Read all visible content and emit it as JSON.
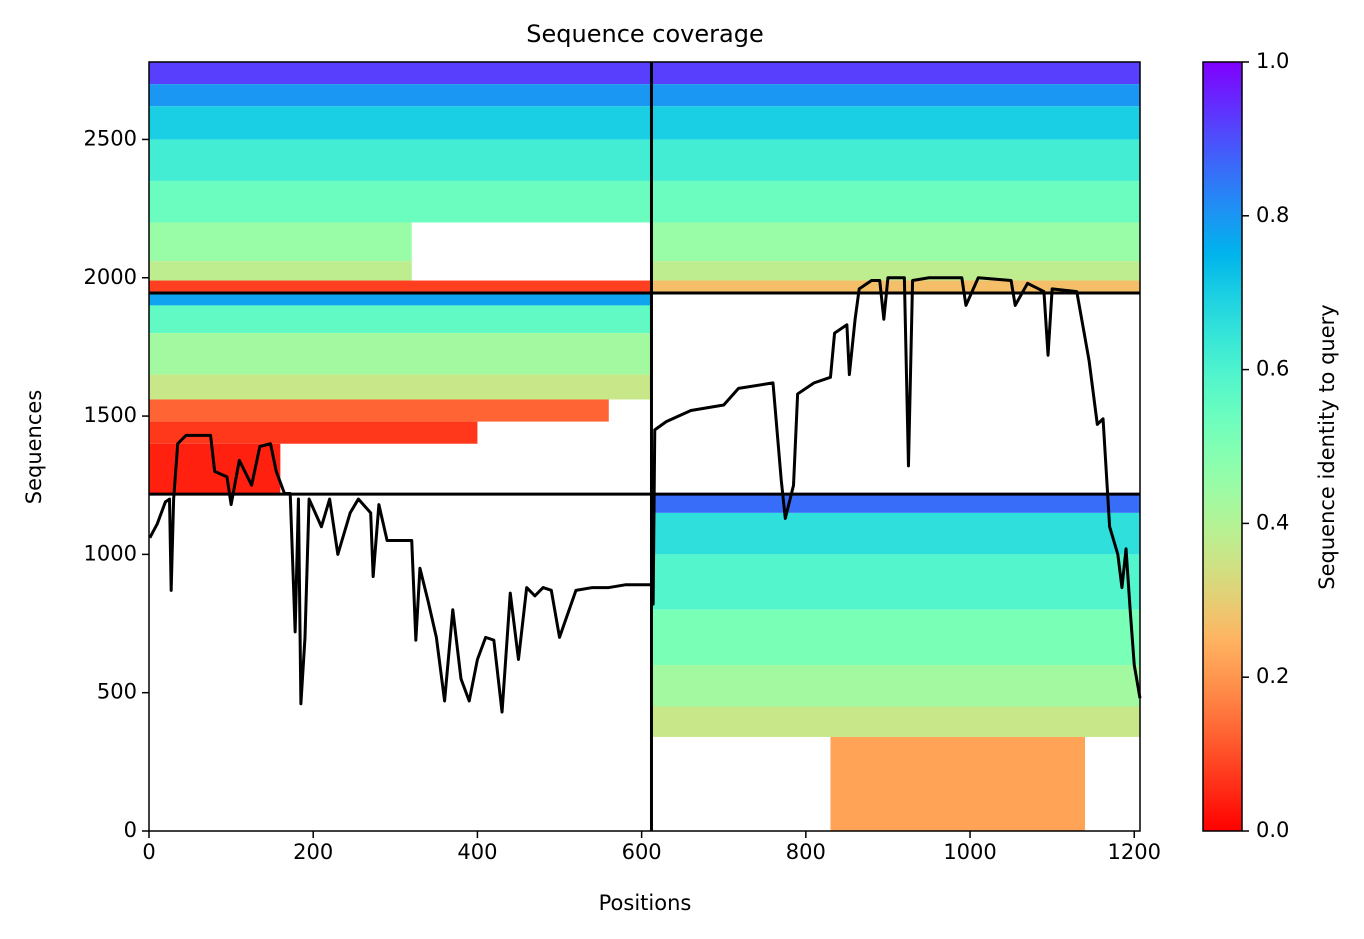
{
  "chart_data": {
    "type": "coverage",
    "title": "Sequence coverage",
    "x_label": "Positions",
    "y_label": "Sequences",
    "colorbar_label": "Sequence identity to query",
    "colormap": "rainbow_r",
    "xlim": [
      0,
      1207
    ],
    "ylim": [
      0,
      2780
    ],
    "xticks": [
      0,
      200,
      400,
      600,
      800,
      1000,
      1200
    ],
    "yticks": [
      0,
      500,
      1000,
      1500,
      2000,
      2500
    ],
    "clim": [
      0,
      1
    ],
    "cticks": [
      {
        "value": 0,
        "label": "0.0"
      },
      {
        "value": 0.2,
        "label": "0.2"
      },
      {
        "value": 0.4,
        "label": "0.4"
      },
      {
        "value": 0.6,
        "label": "0.6"
      },
      {
        "value": 0.8,
        "label": "0.8"
      },
      {
        "value": 1,
        "label": "1.0"
      }
    ],
    "chain_breaks_x": [
      612
    ],
    "block_breaks_y": [
      1218,
      1945
    ],
    "blocks": [
      {
        "x": [
          0,
          1207
        ],
        "y": [
          2700,
          2780
        ],
        "identity": 0.92
      },
      {
        "x": [
          0,
          1207
        ],
        "y": [
          2620,
          2700
        ],
        "identity": 0.8
      },
      {
        "x": [
          0,
          1207
        ],
        "y": [
          2500,
          2620
        ],
        "identity": 0.7
      },
      {
        "x": [
          0,
          1207
        ],
        "y": [
          2350,
          2500
        ],
        "identity": 0.62
      },
      {
        "x": [
          0,
          1207
        ],
        "y": [
          2200,
          2350
        ],
        "identity": 0.54
      },
      {
        "x": [
          0,
          320
        ],
        "y": [
          2060,
          2200
        ],
        "identity": 0.45
      },
      {
        "x": [
          612,
          1207
        ],
        "y": [
          2060,
          2200
        ],
        "identity": 0.45
      },
      {
        "x": [
          0,
          320
        ],
        "y": [
          1990,
          2060
        ],
        "identity": 0.38
      },
      {
        "x": [
          612,
          1207
        ],
        "y": [
          1990,
          2060
        ],
        "identity": 0.38
      },
      {
        "x": [
          0,
          612
        ],
        "y": [
          1945,
          1990
        ],
        "identity": 0.08
      },
      {
        "x": [
          612,
          1207
        ],
        "y": [
          1945,
          1990
        ],
        "identity": 0.27
      },
      {
        "x": [
          0,
          612
        ],
        "y": [
          1900,
          1945
        ],
        "identity": 0.78
      },
      {
        "x": [
          0,
          612
        ],
        "y": [
          1800,
          1900
        ],
        "identity": 0.56
      },
      {
        "x": [
          0,
          612
        ],
        "y": [
          1650,
          1800
        ],
        "identity": 0.43
      },
      {
        "x": [
          0,
          612
        ],
        "y": [
          1560,
          1650
        ],
        "identity": 0.36
      },
      {
        "x": [
          0,
          560
        ],
        "y": [
          1480,
          1560
        ],
        "identity": 0.13
      },
      {
        "x": [
          0,
          400
        ],
        "y": [
          1400,
          1480
        ],
        "identity": 0.07
      },
      {
        "x": [
          0,
          160
        ],
        "y": [
          1218,
          1400
        ],
        "identity": 0.04
      },
      {
        "x": [
          612,
          1207
        ],
        "y": [
          1150,
          1218
        ],
        "identity": 0.86
      },
      {
        "x": [
          612,
          1207
        ],
        "y": [
          1000,
          1150
        ],
        "identity": 0.66
      },
      {
        "x": [
          612,
          1207
        ],
        "y": [
          800,
          1000
        ],
        "identity": 0.59
      },
      {
        "x": [
          612,
          1207
        ],
        "y": [
          600,
          800
        ],
        "identity": 0.51
      },
      {
        "x": [
          612,
          1207
        ],
        "y": [
          450,
          600
        ],
        "identity": 0.43
      },
      {
        "x": [
          612,
          1207
        ],
        "y": [
          340,
          450
        ],
        "identity": 0.36
      },
      {
        "x": [
          830,
          1140
        ],
        "y": [
          0,
          340
        ],
        "identity": 0.22
      }
    ],
    "coverage": {
      "color": "#000000",
      "x": [
        1,
        10,
        20,
        25,
        27,
        30,
        35,
        45,
        75,
        80,
        95,
        100,
        110,
        125,
        135,
        148,
        155,
        165,
        172,
        178,
        182,
        185,
        190,
        195,
        210,
        220,
        230,
        245,
        255,
        270,
        273,
        280,
        290,
        320,
        325,
        330,
        340,
        350,
        360,
        370,
        380,
        390,
        400,
        410,
        420,
        430,
        440,
        450,
        460,
        470,
        480,
        490,
        500,
        520,
        540,
        560,
        580,
        612,
        614,
        616,
        630,
        660,
        700,
        718,
        760,
        770,
        775,
        785,
        790,
        810,
        830,
        835,
        850,
        853,
        860,
        865,
        880,
        890,
        895,
        900,
        920,
        925,
        930,
        950,
        990,
        995,
        1010,
        1050,
        1055,
        1070,
        1090,
        1095,
        1100,
        1130,
        1145,
        1155,
        1162,
        1170,
        1180,
        1185,
        1190,
        1195,
        1200,
        1207
      ],
      "values": [
        1060,
        1110,
        1190,
        1200,
        870,
        1200,
        1400,
        1430,
        1430,
        1300,
        1280,
        1180,
        1340,
        1250,
        1390,
        1400,
        1300,
        1220,
        1220,
        720,
        1200,
        460,
        700,
        1200,
        1100,
        1200,
        1000,
        1150,
        1200,
        1150,
        920,
        1180,
        1050,
        1050,
        690,
        950,
        830,
        700,
        470,
        800,
        550,
        470,
        620,
        700,
        690,
        430,
        860,
        620,
        880,
        850,
        880,
        870,
        700,
        870,
        880,
        880,
        890,
        890,
        820,
        1450,
        1480,
        1520,
        1540,
        1600,
        1620,
        1270,
        1130,
        1250,
        1580,
        1620,
        1640,
        1800,
        1830,
        1650,
        1850,
        1960,
        1990,
        1990,
        1850,
        2000,
        2000,
        1320,
        1990,
        2000,
        2000,
        1900,
        2000,
        1990,
        1900,
        1980,
        1950,
        1720,
        1960,
        1950,
        1700,
        1470,
        1490,
        1100,
        1000,
        880,
        1020,
        800,
        600,
        480
      ]
    }
  }
}
